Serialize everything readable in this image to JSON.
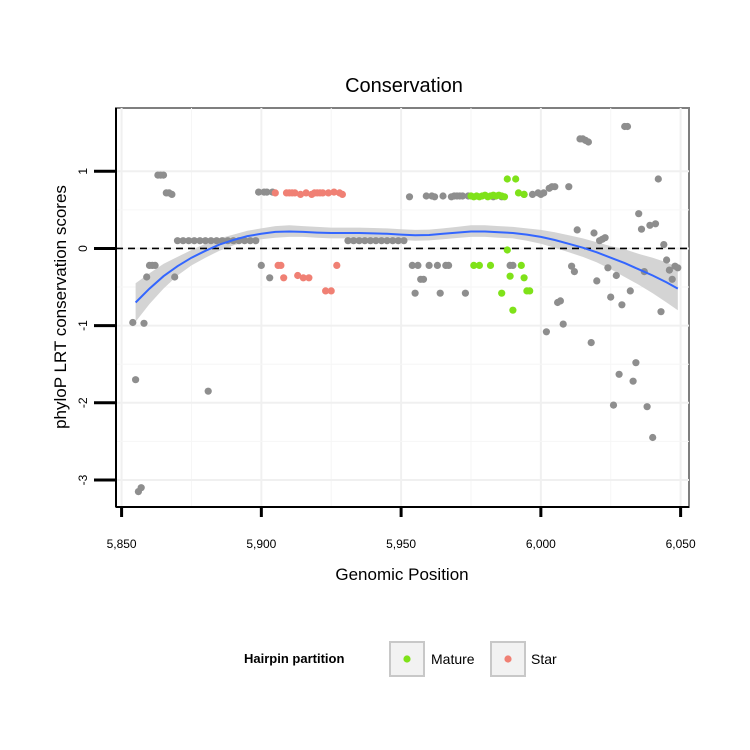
{
  "chart_data": {
    "type": "scatter",
    "title": "Conservation",
    "xlabel": "Genomic Position",
    "ylabel": "phyloP LRT conservation scores",
    "xlim": [
      5848,
      6053
    ],
    "ylim": [
      -3.35,
      1.82
    ],
    "x_ticks": [
      5850,
      5900,
      5950,
      6000,
      6050
    ],
    "x_tick_labels": [
      "5,850",
      "5,900",
      "5,950",
      "6,000",
      "6,050"
    ],
    "y_ticks": [
      1,
      0,
      -1,
      -2,
      -3
    ],
    "y_tick_labels": [
      "1",
      "0",
      "-1",
      "-2",
      "-3"
    ],
    "reference_line": {
      "y": 0,
      "style": "dashed"
    },
    "legend": {
      "title": "Hairpin partition",
      "placement": "bottom",
      "entries": [
        {
          "label": "Mature",
          "color": "#7fe219"
        },
        {
          "label": "Star",
          "color": "#f08074"
        }
      ]
    },
    "colors": {
      "other": "#8e8e8e",
      "mature": "#7fe219",
      "star": "#f08074",
      "smooth": "#3366ff",
      "band": "#cccccc"
    },
    "smooth": {
      "x": [
        5855,
        5860,
        5865,
        5870,
        5875,
        5880,
        5885,
        5890,
        5895,
        5900,
        5905,
        5910,
        5915,
        5920,
        5925,
        5930,
        5935,
        5940,
        5945,
        5950,
        5955,
        5960,
        5965,
        5970,
        5975,
        5980,
        5985,
        5990,
        5995,
        6000,
        6005,
        6010,
        6015,
        6020,
        6025,
        6030,
        6035,
        6040,
        6045,
        6049
      ],
      "y": [
        -0.7,
        -0.52,
        -0.36,
        -0.23,
        -0.12,
        -0.03,
        0.05,
        0.11,
        0.16,
        0.19,
        0.215,
        0.22,
        0.215,
        0.205,
        0.2,
        0.2,
        0.2,
        0.195,
        0.19,
        0.18,
        0.17,
        0.175,
        0.19,
        0.205,
        0.22,
        0.22,
        0.21,
        0.2,
        0.18,
        0.15,
        0.11,
        0.06,
        0.01,
        -0.05,
        -0.12,
        -0.19,
        -0.27,
        -0.35,
        -0.44,
        -0.52
      ],
      "lower": [
        -0.95,
        -0.72,
        -0.52,
        -0.35,
        -0.22,
        -0.12,
        -0.03,
        0.04,
        0.09,
        0.12,
        0.14,
        0.15,
        0.15,
        0.14,
        0.13,
        0.13,
        0.13,
        0.125,
        0.12,
        0.11,
        0.1,
        0.105,
        0.12,
        0.135,
        0.15,
        0.15,
        0.14,
        0.13,
        0.1,
        0.06,
        0.01,
        -0.05,
        -0.11,
        -0.18,
        -0.27,
        -0.37,
        -0.47,
        -0.58,
        -0.7,
        -0.8
      ],
      "upper": [
        -0.45,
        -0.32,
        -0.2,
        -0.11,
        -0.02,
        0.06,
        0.13,
        0.18,
        0.23,
        0.26,
        0.29,
        0.3,
        0.29,
        0.28,
        0.27,
        0.27,
        0.27,
        0.265,
        0.26,
        0.25,
        0.24,
        0.245,
        0.26,
        0.28,
        0.3,
        0.3,
        0.29,
        0.28,
        0.26,
        0.24,
        0.21,
        0.17,
        0.13,
        0.08,
        0.03,
        -0.01,
        -0.07,
        -0.12,
        -0.18,
        -0.24
      ]
    },
    "points": {
      "other": [
        [
          5854,
          -0.96
        ],
        [
          5855,
          -1.7
        ],
        [
          5856,
          -3.15
        ],
        [
          5857,
          -3.1
        ],
        [
          5858,
          -0.97
        ],
        [
          5859,
          -0.37
        ],
        [
          5860,
          -0.22
        ],
        [
          5861,
          -0.22
        ],
        [
          5862,
          -0.22
        ],
        [
          5863,
          0.95
        ],
        [
          5864,
          0.95
        ],
        [
          5865,
          0.95
        ],
        [
          5866,
          0.72
        ],
        [
          5867,
          0.72
        ],
        [
          5868,
          0.7
        ],
        [
          5869,
          -0.37
        ],
        [
          5870,
          0.1
        ],
        [
          5872,
          0.1
        ],
        [
          5874,
          0.1
        ],
        [
          5876,
          0.1
        ],
        [
          5878,
          0.1
        ],
        [
          5880,
          0.1
        ],
        [
          5881,
          -1.85
        ],
        [
          5882,
          0.1
        ],
        [
          5884,
          0.1
        ],
        [
          5886,
          0.1
        ],
        [
          5888,
          0.1
        ],
        [
          5890,
          0.1
        ],
        [
          5892,
          0.1
        ],
        [
          5894,
          0.1
        ],
        [
          5896,
          0.1
        ],
        [
          5898,
          0.1
        ],
        [
          5899,
          0.73
        ],
        [
          5900,
          -0.22
        ],
        [
          5901,
          0.73
        ],
        [
          5902,
          0.73
        ],
        [
          5903,
          -0.38
        ],
        [
          5904,
          0.73
        ],
        [
          5931,
          0.1
        ],
        [
          5933,
          0.1
        ],
        [
          5935,
          0.1
        ],
        [
          5937,
          0.1
        ],
        [
          5939,
          0.1
        ],
        [
          5941,
          0.1
        ],
        [
          5943,
          0.1
        ],
        [
          5945,
          0.1
        ],
        [
          5947,
          0.1
        ],
        [
          5949,
          0.1
        ],
        [
          5951,
          0.1
        ],
        [
          5953,
          0.67
        ],
        [
          5954,
          -0.22
        ],
        [
          5955,
          -0.58
        ],
        [
          5956,
          -0.22
        ],
        [
          5957,
          -0.4
        ],
        [
          5958,
          -0.4
        ],
        [
          5959,
          0.68
        ],
        [
          5960,
          -0.22
        ],
        [
          5961,
          0.68
        ],
        [
          5962,
          0.67
        ],
        [
          5963,
          -0.22
        ],
        [
          5964,
          -0.58
        ],
        [
          5965,
          0.68
        ],
        [
          5966,
          -0.22
        ],
        [
          5967,
          -0.22
        ],
        [
          5968,
          0.67
        ],
        [
          5969,
          0.68
        ],
        [
          5970,
          0.68
        ],
        [
          5971,
          0.68
        ],
        [
          5972,
          0.68
        ],
        [
          5973,
          -0.58
        ],
        [
          5974,
          0.68
        ],
        [
          5983,
          0.67
        ],
        [
          5986,
          0.67
        ],
        [
          5989,
          -0.22
        ],
        [
          5990,
          -0.22
        ],
        [
          5994,
          0.7
        ],
        [
          5997,
          0.7
        ],
        [
          5999,
          0.72
        ],
        [
          6000,
          0.7
        ],
        [
          6001,
          0.72
        ],
        [
          6002,
          -1.08
        ],
        [
          6003,
          0.78
        ],
        [
          6004,
          0.8
        ],
        [
          6005,
          0.8
        ],
        [
          6006,
          -0.7
        ],
        [
          6007,
          -0.68
        ],
        [
          6008,
          -0.98
        ],
        [
          6010,
          0.8
        ],
        [
          6011,
          -0.23
        ],
        [
          6012,
          -0.3
        ],
        [
          6013,
          0.24
        ],
        [
          6014,
          1.42
        ],
        [
          6015,
          1.42
        ],
        [
          6016,
          1.4
        ],
        [
          6017,
          1.38
        ],
        [
          6018,
          -1.22
        ],
        [
          6019,
          0.2
        ],
        [
          6020,
          -0.42
        ],
        [
          6021,
          0.1
        ],
        [
          6022,
          0.12
        ],
        [
          6023,
          0.14
        ],
        [
          6024,
          -0.25
        ],
        [
          6025,
          -0.63
        ],
        [
          6026,
          -2.03
        ],
        [
          6027,
          -0.35
        ],
        [
          6028,
          -1.63
        ],
        [
          6029,
          -0.73
        ],
        [
          6030,
          1.58
        ],
        [
          6031,
          1.58
        ],
        [
          6032,
          -0.55
        ],
        [
          6033,
          -1.72
        ],
        [
          6034,
          -1.48
        ],
        [
          6035,
          0.45
        ],
        [
          6036,
          0.25
        ],
        [
          6037,
          -0.3
        ],
        [
          6038,
          -2.05
        ],
        [
          6039,
          0.3
        ],
        [
          6040,
          -2.45
        ],
        [
          6041,
          0.32
        ],
        [
          6042,
          0.9
        ],
        [
          6043,
          -0.82
        ],
        [
          6044,
          0.05
        ],
        [
          6045,
          -0.15
        ],
        [
          6046,
          -0.28
        ],
        [
          6047,
          -0.4
        ],
        [
          6048,
          -0.23
        ],
        [
          6049,
          -0.25
        ]
      ],
      "mature": [
        [
          5975,
          0.68
        ],
        [
          5976,
          0.67
        ],
        [
          5977,
          0.68
        ],
        [
          5978,
          0.67
        ],
        [
          5979,
          0.68
        ],
        [
          5980,
          0.69
        ],
        [
          5981,
          0.67
        ],
        [
          5982,
          0.68
        ],
        [
          5983,
          0.69
        ],
        [
          5984,
          0.68
        ],
        [
          5985,
          0.69
        ],
        [
          5986,
          0.68
        ],
        [
          5987,
          0.67
        ],
        [
          5988,
          0.9
        ],
        [
          5991,
          0.9
        ],
        [
          5992,
          0.72
        ],
        [
          5994,
          0.7
        ],
        [
          5976,
          -0.22
        ],
        [
          5978,
          -0.22
        ],
        [
          5982,
          -0.22
        ],
        [
          5986,
          -0.58
        ],
        [
          5988,
          -0.02
        ],
        [
          5989,
          -0.36
        ],
        [
          5990,
          -0.8
        ],
        [
          5993,
          -0.22
        ],
        [
          5994,
          -0.38
        ],
        [
          5995,
          -0.55
        ],
        [
          5996,
          -0.55
        ]
      ],
      "star": [
        [
          5905,
          0.72
        ],
        [
          5906,
          -0.22
        ],
        [
          5907,
          -0.22
        ],
        [
          5908,
          -0.38
        ],
        [
          5909,
          0.72
        ],
        [
          5910,
          0.72
        ],
        [
          5911,
          0.72
        ],
        [
          5912,
          0.72
        ],
        [
          5913,
          -0.35
        ],
        [
          5914,
          0.7
        ],
        [
          5915,
          -0.38
        ],
        [
          5916,
          0.72
        ],
        [
          5917,
          -0.38
        ],
        [
          5918,
          0.7
        ],
        [
          5919,
          0.72
        ],
        [
          5920,
          0.72
        ],
        [
          5921,
          0.72
        ],
        [
          5922,
          0.72
        ],
        [
          5923,
          -0.55
        ],
        [
          5924,
          0.72
        ],
        [
          5925,
          -0.55
        ],
        [
          5926,
          0.73
        ],
        [
          5927,
          -0.22
        ],
        [
          5928,
          0.72
        ],
        [
          5929,
          0.7
        ]
      ]
    }
  }
}
